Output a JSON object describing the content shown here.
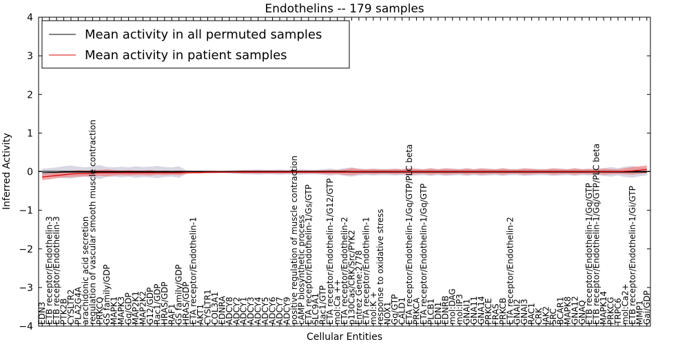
{
  "chart_data": {
    "type": "line",
    "title": "Endothelins -- 179 samples",
    "xlabel": "Cellular Entities",
    "ylabel": "Inferred Activity",
    "ylim": [
      -4,
      4
    ],
    "yticks": [
      "−4",
      "−3",
      "−2",
      "−1",
      "0",
      "1",
      "2",
      "3",
      "4"
    ],
    "grid": false,
    "legend_position": "top-left",
    "colors": {
      "permuted": "#000000",
      "patient": "#dd0000",
      "patient_band": "#f08080",
      "permuted_band": "#b8b8cc"
    },
    "categories": [
      "EDN3",
      "ETB receptor/Endothelin-3",
      "ETB receptor/Endothelin-3",
      "PTK2B",
      "CYSLTR2",
      "PLA2G4A",
      "arachidonic acid secretion",
      "regulation of vascular smooth muscle contraction",
      "PRKCQ",
      "GS family/GDP",
      "MAPK1",
      "MAPK3",
      "Gq/GDP",
      "MAP2K1",
      "MAP2K2",
      "G12/GDP",
      "Rac1/GDP",
      "HRAS/GDP",
      "RAF1",
      "GS family/GDP",
      "HRAS/GDP",
      "ETA receptor/Endothelin-1",
      "AKT1",
      "CYSLTR1",
      "COL3A1",
      "EDNRA",
      "ADCY8",
      "ADCY2",
      "ADCY1",
      "ADCY3",
      "ADCY4",
      "ADCY5",
      "ADCY6",
      "ADCY7",
      "ADCY9",
      "positive regulation of muscle contraction",
      "cAMP biosynthetic process",
      "ETA receptor/Endothelin-1/Gs/GTP",
      "SLC9A1",
      "Rac1/GTP",
      "ETA receptor/Endothelin-1/G12/GTP",
      "mol:Ca ++",
      "ETA receptor/Endothelin-2",
      "p130Cas/CRK/Src/PYK2",
      "Entrez Gene:2778",
      "ETA receptor/Endothelin-1",
      "mol:K +",
      "response to oxidative stress",
      "NOX1",
      "Gq/GTP",
      "CALD1",
      "ETA receptor/Endothelin-1/Gq/GTP/PLC beta",
      "PRKCA",
      "ETA receptor/Endothelin-1/Gq/GTP",
      "PLCB1",
      "EDN1",
      "EDNRB",
      "mol:DAG",
      "mol:IP3",
      "GNAI1",
      "GNA11",
      "GNA14",
      "PRKCE",
      "FRAS",
      "PRKCB",
      "ETA receptor/Endothelin-2",
      "GNAI2",
      "GNAI3",
      "RAC1",
      "CRK",
      "JAK2",
      "SRC",
      "BCAR1",
      "MAPK8",
      "GNA12",
      "GNAQ",
      "ETB receptor/Endothelin-1/Gq/GTP",
      "ETB receptor/Endothelin-1/Gq/GTP/PLC beta",
      "MAPK14",
      "PRKCG",
      "TRPC6",
      "mol:Ca2+",
      "ETB receptor/Endothelin-1/Gi/GTP",
      "MMP1",
      "Gai/GDP"
    ],
    "series": [
      {
        "name": "Mean activity in all permuted samples",
        "values": [
          -0.03,
          -0.02,
          -0.02,
          -0.01,
          -0.01,
          -0.01,
          -0.01,
          -0.01,
          -0.01,
          -0.01,
          -0.01,
          -0.01,
          -0.01,
          -0.01,
          -0.01,
          -0.01,
          -0.01,
          -0.01,
          -0.01,
          -0.01,
          -0.01,
          -0.01,
          -0.01,
          -0.01,
          -0.01,
          -0.01,
          -0.01,
          -0.01,
          -0.01,
          -0.01,
          -0.01,
          -0.01,
          -0.01,
          -0.01,
          -0.01,
          -0.01,
          -0.01,
          -0.01,
          -0.01,
          -0.01,
          -0.01,
          -0.01,
          -0.01,
          -0.01,
          -0.01,
          -0.01,
          -0.01,
          -0.01,
          -0.01,
          -0.01,
          -0.01,
          -0.01,
          -0.01,
          -0.01,
          -0.01,
          -0.01,
          -0.01,
          -0.01,
          -0.01,
          -0.01,
          -0.01,
          -0.01,
          -0.01,
          -0.01,
          -0.01,
          -0.01,
          -0.01,
          -0.01,
          -0.01,
          -0.01,
          -0.01,
          -0.01,
          -0.01,
          -0.01,
          -0.01,
          -0.01,
          -0.01,
          -0.01,
          -0.01,
          -0.01,
          -0.01,
          -0.01,
          -0.01,
          -0.01,
          -0.01
        ]
      },
      {
        "name": "Mean activity in patient samples",
        "values": [
          -0.14,
          -0.12,
          -0.1,
          -0.08,
          -0.06,
          -0.05,
          -0.05,
          -0.04,
          -0.03,
          -0.03,
          -0.03,
          -0.03,
          -0.03,
          -0.03,
          -0.03,
          -0.03,
          -0.03,
          -0.03,
          -0.03,
          -0.03,
          -0.02,
          -0.02,
          -0.02,
          -0.01,
          -0.01,
          -0.01,
          -0.01,
          -0.01,
          -0.01,
          -0.01,
          -0.01,
          -0.01,
          -0.01,
          -0.01,
          -0.01,
          -0.01,
          -0.01,
          -0.01,
          -0.01,
          -0.01,
          -0.01,
          -0.01,
          -0.01,
          0.0,
          0.0,
          0.0,
          0.0,
          0.0,
          0.0,
          0.0,
          0.0,
          0.0,
          0.0,
          0.0,
          0.0,
          0.0,
          0.0,
          0.0,
          0.0,
          0.0,
          0.0,
          0.0,
          0.0,
          0.0,
          0.0,
          0.0,
          0.0,
          0.0,
          0.0,
          0.0,
          0.0,
          0.0,
          0.0,
          0.0,
          0.0,
          0.0,
          0.0,
          0.0,
          0.0,
          0.0,
          0.0,
          0.01,
          0.02,
          0.04,
          0.06
        ],
        "lower": [
          -0.22,
          -0.2,
          -0.17,
          -0.15,
          -0.14,
          -0.13,
          -0.12,
          -0.12,
          -0.11,
          -0.12,
          -0.1,
          -0.09,
          -0.1,
          -0.09,
          -0.09,
          -0.1,
          -0.08,
          -0.09,
          -0.08,
          -0.09,
          -0.06,
          -0.05,
          -0.05,
          -0.04,
          -0.04,
          -0.03,
          -0.03,
          -0.04,
          -0.05,
          -0.05,
          -0.05,
          -0.05,
          -0.05,
          -0.05,
          -0.05,
          -0.05,
          -0.05,
          -0.05,
          -0.05,
          -0.06,
          -0.07,
          -0.06,
          -0.08,
          -0.09,
          -0.07,
          -0.06,
          -0.07,
          -0.06,
          -0.06,
          -0.07,
          -0.06,
          -0.08,
          -0.07,
          -0.06,
          -0.08,
          -0.06,
          -0.08,
          -0.07,
          -0.06,
          -0.08,
          -0.06,
          -0.08,
          -0.07,
          -0.06,
          -0.08,
          -0.06,
          -0.06,
          -0.08,
          -0.07,
          -0.06,
          -0.06,
          -0.08,
          -0.07,
          -0.06,
          -0.08,
          -0.06,
          -0.07,
          -0.06,
          -0.08,
          -0.07,
          -0.06,
          -0.07,
          -0.08,
          -0.06,
          -0.04
        ],
        "upper": [
          -0.06,
          -0.04,
          -0.03,
          -0.01,
          0.02,
          0.04,
          0.03,
          0.04,
          0.05,
          0.06,
          0.04,
          0.03,
          0.04,
          0.03,
          0.03,
          0.04,
          0.02,
          0.03,
          0.02,
          0.03,
          0.02,
          0.01,
          0.01,
          0.02,
          0.02,
          0.01,
          0.01,
          0.02,
          0.03,
          0.03,
          0.03,
          0.03,
          0.03,
          0.03,
          0.03,
          0.03,
          0.03,
          0.03,
          0.03,
          0.04,
          0.05,
          0.04,
          0.06,
          0.09,
          0.07,
          0.06,
          0.07,
          0.06,
          0.06,
          0.07,
          0.06,
          0.08,
          0.07,
          0.06,
          0.08,
          0.06,
          0.08,
          0.07,
          0.06,
          0.08,
          0.06,
          0.08,
          0.07,
          0.06,
          0.08,
          0.06,
          0.06,
          0.08,
          0.07,
          0.06,
          0.06,
          0.08,
          0.07,
          0.06,
          0.08,
          0.06,
          0.07,
          0.06,
          0.08,
          0.07,
          0.06,
          0.09,
          0.12,
          0.14,
          0.16
        ]
      },
      {
        "name": "Permuted spread",
        "lower": [
          -0.13,
          -0.13,
          -0.15,
          -0.17,
          -0.18,
          -0.15,
          -0.13,
          -0.16,
          -0.19,
          -0.14,
          -0.13,
          -0.15,
          -0.13,
          -0.16,
          -0.14,
          -0.15,
          -0.17,
          -0.14,
          -0.13,
          -0.16,
          -0.06,
          -0.05,
          -0.05,
          -0.05,
          -0.04,
          -0.04,
          -0.05,
          -0.06,
          -0.07,
          -0.07,
          -0.08,
          -0.07,
          -0.07,
          -0.08,
          -0.07,
          -0.07,
          -0.08,
          -0.07,
          -0.07,
          -0.08,
          -0.1,
          -0.08,
          -0.11,
          -0.13,
          -0.1,
          -0.09,
          -0.1,
          -0.09,
          -0.09,
          -0.1,
          -0.09,
          -0.11,
          -0.1,
          -0.09,
          -0.11,
          -0.09,
          -0.11,
          -0.1,
          -0.09,
          -0.11,
          -0.09,
          -0.11,
          -0.1,
          -0.09,
          -0.11,
          -0.09,
          -0.09,
          -0.11,
          -0.1,
          -0.09,
          -0.09,
          -0.11,
          -0.1,
          -0.09,
          -0.11,
          -0.09,
          -0.1,
          -0.09,
          -0.11,
          -0.13,
          -0.1,
          -0.14,
          -0.16,
          -0.12,
          -0.1
        ],
        "upper": [
          0.08,
          0.09,
          0.11,
          0.14,
          0.16,
          0.13,
          0.11,
          0.14,
          0.17,
          0.12,
          0.11,
          0.13,
          0.11,
          0.14,
          0.12,
          0.13,
          0.15,
          0.12,
          0.11,
          0.14,
          0.04,
          0.03,
          0.03,
          0.03,
          0.02,
          0.02,
          0.03,
          0.04,
          0.05,
          0.05,
          0.06,
          0.05,
          0.05,
          0.06,
          0.05,
          0.05,
          0.06,
          0.05,
          0.05,
          0.06,
          0.08,
          0.06,
          0.09,
          0.11,
          0.08,
          0.07,
          0.08,
          0.07,
          0.07,
          0.08,
          0.07,
          0.09,
          0.08,
          0.07,
          0.09,
          0.07,
          0.09,
          0.08,
          0.07,
          0.09,
          0.07,
          0.09,
          0.08,
          0.07,
          0.09,
          0.07,
          0.07,
          0.09,
          0.08,
          0.07,
          0.07,
          0.09,
          0.08,
          0.07,
          0.09,
          0.07,
          0.08,
          0.07,
          0.09,
          0.12,
          0.09,
          0.13,
          0.15,
          0.11,
          0.09
        ]
      }
    ]
  }
}
